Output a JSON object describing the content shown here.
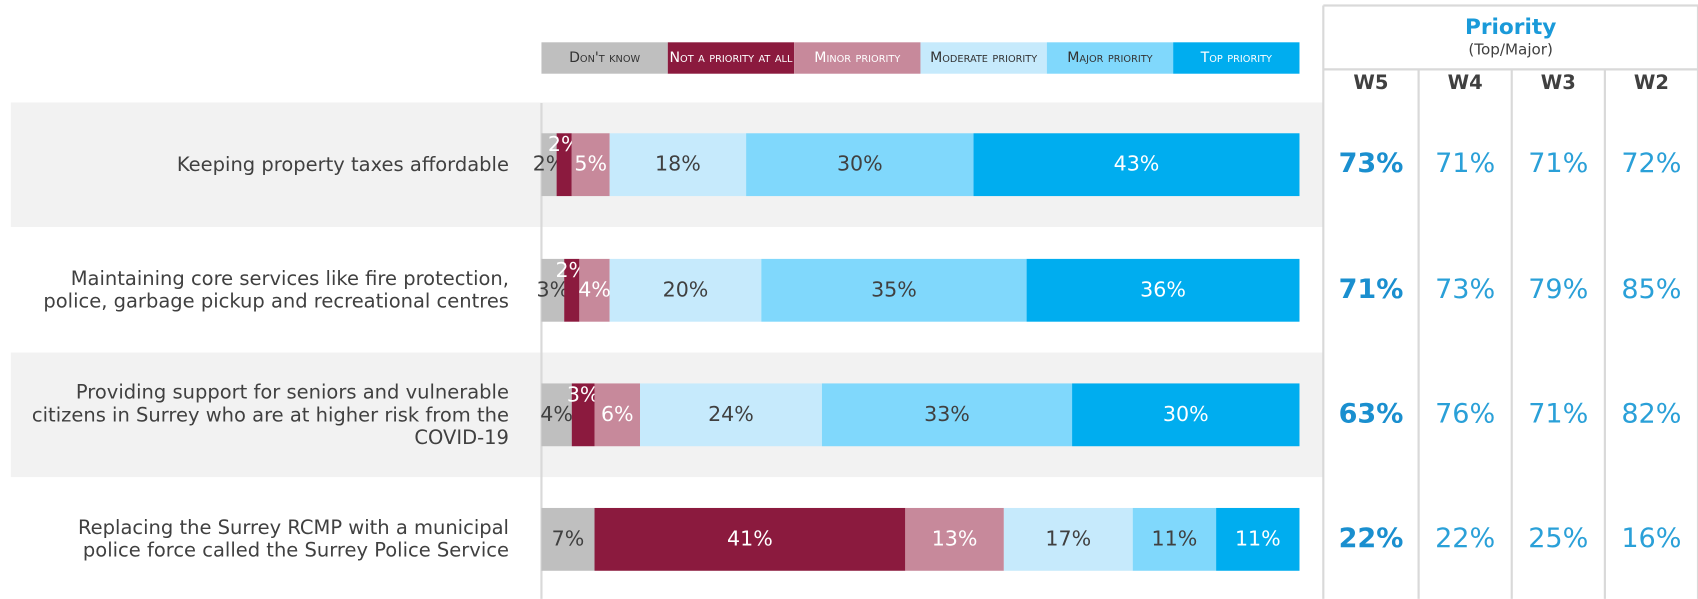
{
  "chart_data": {
    "type": "stacked-bar-horizontal",
    "categories": [
      "Keeping property taxes affordable",
      "Maintaining core services like fire protection, police, garbage pickup and recreational centres",
      "Providing support for seniors and vulnerable citizens in Surrey who are at higher risk from the COVID-19",
      "Replacing the Surrey RCMP with a municipal police force called the Surrey Police Service"
    ],
    "xlim": [
      0,
      100
    ],
    "series": [
      {
        "name": "Don't know",
        "color": "#bfbfbf",
        "values": [
          2,
          3,
          4,
          7
        ],
        "value_labels": [
          "2%",
          "3%",
          "4%",
          "7%"
        ]
      },
      {
        "name": "Not a priority at all",
        "color": "#8b1a3e",
        "values": [
          2,
          2,
          3,
          41
        ],
        "value_labels": [
          "2%",
          "2%",
          "3%",
          "41%"
        ]
      },
      {
        "name": "Minor priority",
        "color": "#c7899b",
        "values": [
          5,
          4,
          6,
          13
        ],
        "value_labels": [
          "5%",
          "4%",
          "6%",
          "13%"
        ]
      },
      {
        "name": "Moderate priority",
        "color": "#c6eafc",
        "values": [
          18,
          20,
          24,
          17
        ],
        "value_labels": [
          "18%",
          "20%",
          "24%",
          "17%"
        ]
      },
      {
        "name": "Major priority",
        "color": "#80d8fc",
        "values": [
          30,
          35,
          33,
          11
        ],
        "value_labels": [
          "30%",
          "35%",
          "33%",
          "11%"
        ]
      },
      {
        "name": "Top priority",
        "color": "#00adef",
        "values": [
          43,
          36,
          30,
          11
        ],
        "value_labels": [
          "43%",
          "36%",
          "30%",
          "11%"
        ]
      }
    ]
  },
  "table": {
    "title": "Priority",
    "subtitle": "(Top/Major)",
    "columns": [
      "W5",
      "W4",
      "W3",
      "W2"
    ],
    "rows": [
      [
        "73%",
        "71%",
        "71%",
        "72%"
      ],
      [
        "71%",
        "73%",
        "79%",
        "85%"
      ],
      [
        "63%",
        "76%",
        "71%",
        "82%"
      ],
      [
        "22%",
        "22%",
        "25%",
        "16%"
      ]
    ]
  }
}
